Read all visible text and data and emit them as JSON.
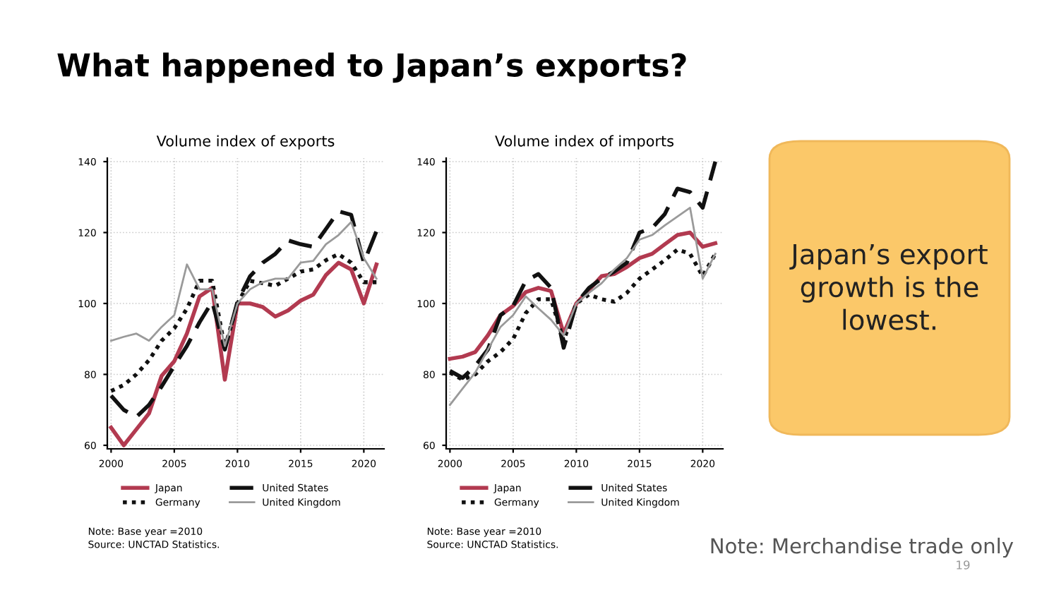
{
  "chart_data": [
    {
      "type": "other",
      "title": "What happened to Japan’s exports?"
    },
    {
      "type": "line",
      "title": "Volume index of exports",
      "x": [
        2000,
        2001,
        2002,
        2003,
        2004,
        2005,
        2006,
        2007,
        2008,
        2009,
        2010,
        2011,
        2012,
        2013,
        2014,
        2015,
        2016,
        2017,
        2018,
        2019,
        2020,
        2021
      ],
      "series": [
        {
          "name": "Japan",
          "color": "#b23a50",
          "line_style": "solid",
          "values": [
            65,
            60,
            64.5,
            69,
            79.6,
            83.7,
            91.5,
            102,
            104.4,
            78.5,
            100,
            100,
            99,
            96.3,
            98,
            100.8,
            102.5,
            108,
            111.5,
            109.6,
            100,
            111
          ]
        },
        {
          "name": "Germany",
          "color": "#111111",
          "line_style": "dotted",
          "values": [
            75.3,
            77,
            80,
            84,
            89.5,
            93,
            98.5,
            106.4,
            106.4,
            87.5,
            100,
            106.4,
            105.7,
            105,
            107,
            109,
            109.6,
            112.2,
            113.9,
            111.5,
            106,
            106
          ]
        },
        {
          "name": "United States",
          "color": "#111111",
          "line_style": "dashed",
          "values": [
            74,
            70,
            68,
            71.4,
            76.6,
            82.4,
            88,
            94.7,
            100.5,
            87,
            100.5,
            107.7,
            111.5,
            114,
            117.8,
            116.7,
            116,
            121,
            126,
            125,
            111.5,
            120.4
          ]
        },
        {
          "name": "United Kingdom",
          "color": "#9a9a9a",
          "line_style": "solid",
          "values": [
            89.5,
            90.6,
            91.5,
            89.5,
            93.4,
            96.7,
            111,
            104,
            104,
            88,
            100,
            104,
            106,
            107,
            107,
            111.5,
            112,
            116.7,
            119.3,
            123,
            112.8,
            107
          ]
        }
      ],
      "xlim": [
        1999.7,
        2021.6
      ],
      "xticks": [
        2000,
        2005,
        2010,
        2015,
        2020
      ],
      "ylim": [
        59,
        141
      ],
      "yticks": [
        60,
        80,
        100,
        120,
        140
      ],
      "grid": true,
      "legend": "bottom",
      "annotations": [
        "Note: Base year =2010",
        "Source: UNCTAD Statistics."
      ]
    },
    {
      "type": "line",
      "title": "Volume index of imports",
      "x": [
        2000,
        2001,
        2002,
        2003,
        2004,
        2005,
        2006,
        2007,
        2008,
        2009,
        2010,
        2011,
        2012,
        2013,
        2014,
        2015,
        2016,
        2017,
        2018,
        2019,
        2020,
        2021
      ],
      "series": [
        {
          "name": "Japan",
          "color": "#b23a50",
          "line_style": "solid",
          "values": [
            84.4,
            85,
            86.3,
            91,
            96.7,
            99.3,
            103.2,
            104.4,
            103.5,
            91.5,
            100,
            103.8,
            107.7,
            108.3,
            110.3,
            112.8,
            114,
            116.7,
            119.3,
            120,
            116,
            117
          ]
        },
        {
          "name": "Germany",
          "color": "#111111",
          "line_style": "dotted",
          "values": [
            80.5,
            78.5,
            80,
            83.7,
            86.3,
            90,
            97.3,
            101.2,
            101.2,
            89.5,
            100,
            102.5,
            101.2,
            100.5,
            103,
            107,
            109.6,
            112.2,
            115.2,
            114,
            107.7,
            114
          ]
        },
        {
          "name": "United States",
          "color": "#111111",
          "line_style": "dashed",
          "values": [
            81,
            79,
            82.4,
            87,
            96.7,
            99.3,
            106.4,
            108.3,
            104.4,
            87.5,
            100,
            104.4,
            107,
            109,
            111.5,
            120,
            121.3,
            125.2,
            132.4,
            131.4,
            127,
            140
          ]
        },
        {
          "name": "United Kingdom",
          "color": "#9a9a9a",
          "line_style": "solid",
          "values": [
            71.4,
            76,
            80.5,
            87,
            93.4,
            96.7,
            102,
            98.6,
            95.4,
            91,
            100,
            103,
            105.7,
            109.6,
            112.8,
            118,
            119.3,
            122,
            124.5,
            127,
            107,
            114
          ]
        }
      ],
      "xlim": [
        1999.7,
        2021.6
      ],
      "xticks": [
        2000,
        2005,
        2010,
        2015,
        2020
      ],
      "ylim": [
        59,
        141
      ],
      "yticks": [
        60,
        80,
        100,
        120,
        140
      ],
      "grid": true,
      "legend": "bottom",
      "annotations": [
        "Note: Base year =2010",
        "Source: UNCTAD Statistics."
      ]
    },
    {
      "type": "other",
      "annotations": [
        "Japan’s export growth is the lowest.",
        "Note: Merchandise trade only",
        "19"
      ]
    }
  ]
}
